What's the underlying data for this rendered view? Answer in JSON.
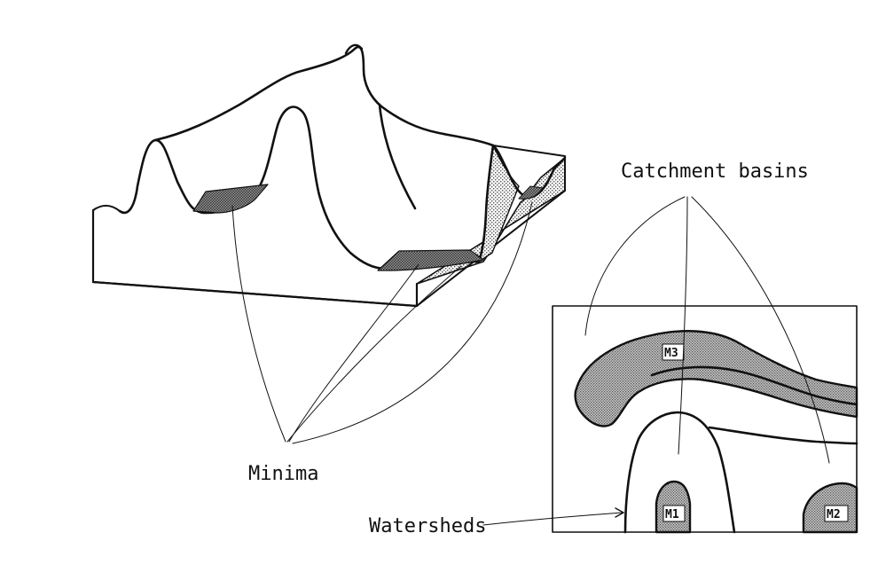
{
  "labels": {
    "catchment_basins": "Catchment basins",
    "minima": "Minima",
    "watersheds": "Watersheds"
  },
  "minima_labels": {
    "m1": "M1",
    "m2": "M2",
    "m3": "M3"
  },
  "colors": {
    "ink": "#111111",
    "stipple_light": "#b9b9b9",
    "stipple_dark": "#6e6e6e",
    "background": "#ffffff"
  }
}
